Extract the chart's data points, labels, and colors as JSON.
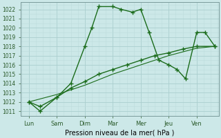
{
  "line1_x": [
    0,
    0.4,
    1,
    1.5,
    2,
    2.25,
    2.5,
    3,
    3.3,
    3.7,
    4,
    4.3,
    4.65,
    5,
    5.3,
    5.6,
    6,
    6.3,
    6.65
  ],
  "line1_y": [
    1012,
    1011,
    1012.5,
    1014,
    1018,
    1020,
    1022.3,
    1022.3,
    1022,
    1021.7,
    1022,
    1019.5,
    1016.5,
    1016,
    1015.5,
    1014.5,
    1019.5,
    1019.5,
    1018
  ],
  "line2_x": [
    0,
    0.4,
    1,
    1.5,
    2,
    2.5,
    3,
    3.5,
    4,
    4.5,
    5,
    5.5,
    6,
    6.65
  ],
  "line2_y": [
    1012,
    1011.5,
    1012.5,
    1013.5,
    1014.2,
    1015,
    1015.5,
    1016,
    1016.5,
    1017,
    1017.3,
    1017.7,
    1018,
    1018
  ],
  "line3_x": [
    0,
    1,
    2,
    3,
    4,
    5,
    6,
    6.65
  ],
  "line3_y": [
    1012,
    1012.8,
    1013.8,
    1015,
    1016,
    1017,
    1017.8,
    1018
  ],
  "xticks": [
    0,
    1,
    2,
    3,
    4,
    5,
    6
  ],
  "xlabels": [
    "Lun",
    "Sam",
    "Dim",
    "Mar",
    "Mer",
    "Jeu",
    "Ven"
  ],
  "ylim": [
    1010.5,
    1022.8
  ],
  "yticks": [
    1011,
    1012,
    1013,
    1014,
    1015,
    1016,
    1017,
    1018,
    1019,
    1020,
    1021,
    1022
  ],
  "xlabel": "Pression niveau de la mer( hPa )",
  "line_color": "#1a6b1a",
  "bg_color": "#cce8e8",
  "grid_major_color": "#aacece",
  "grid_minor_color": "#bcdcdc",
  "marker": "+",
  "markersize": 4.0,
  "linewidth": 1.0
}
